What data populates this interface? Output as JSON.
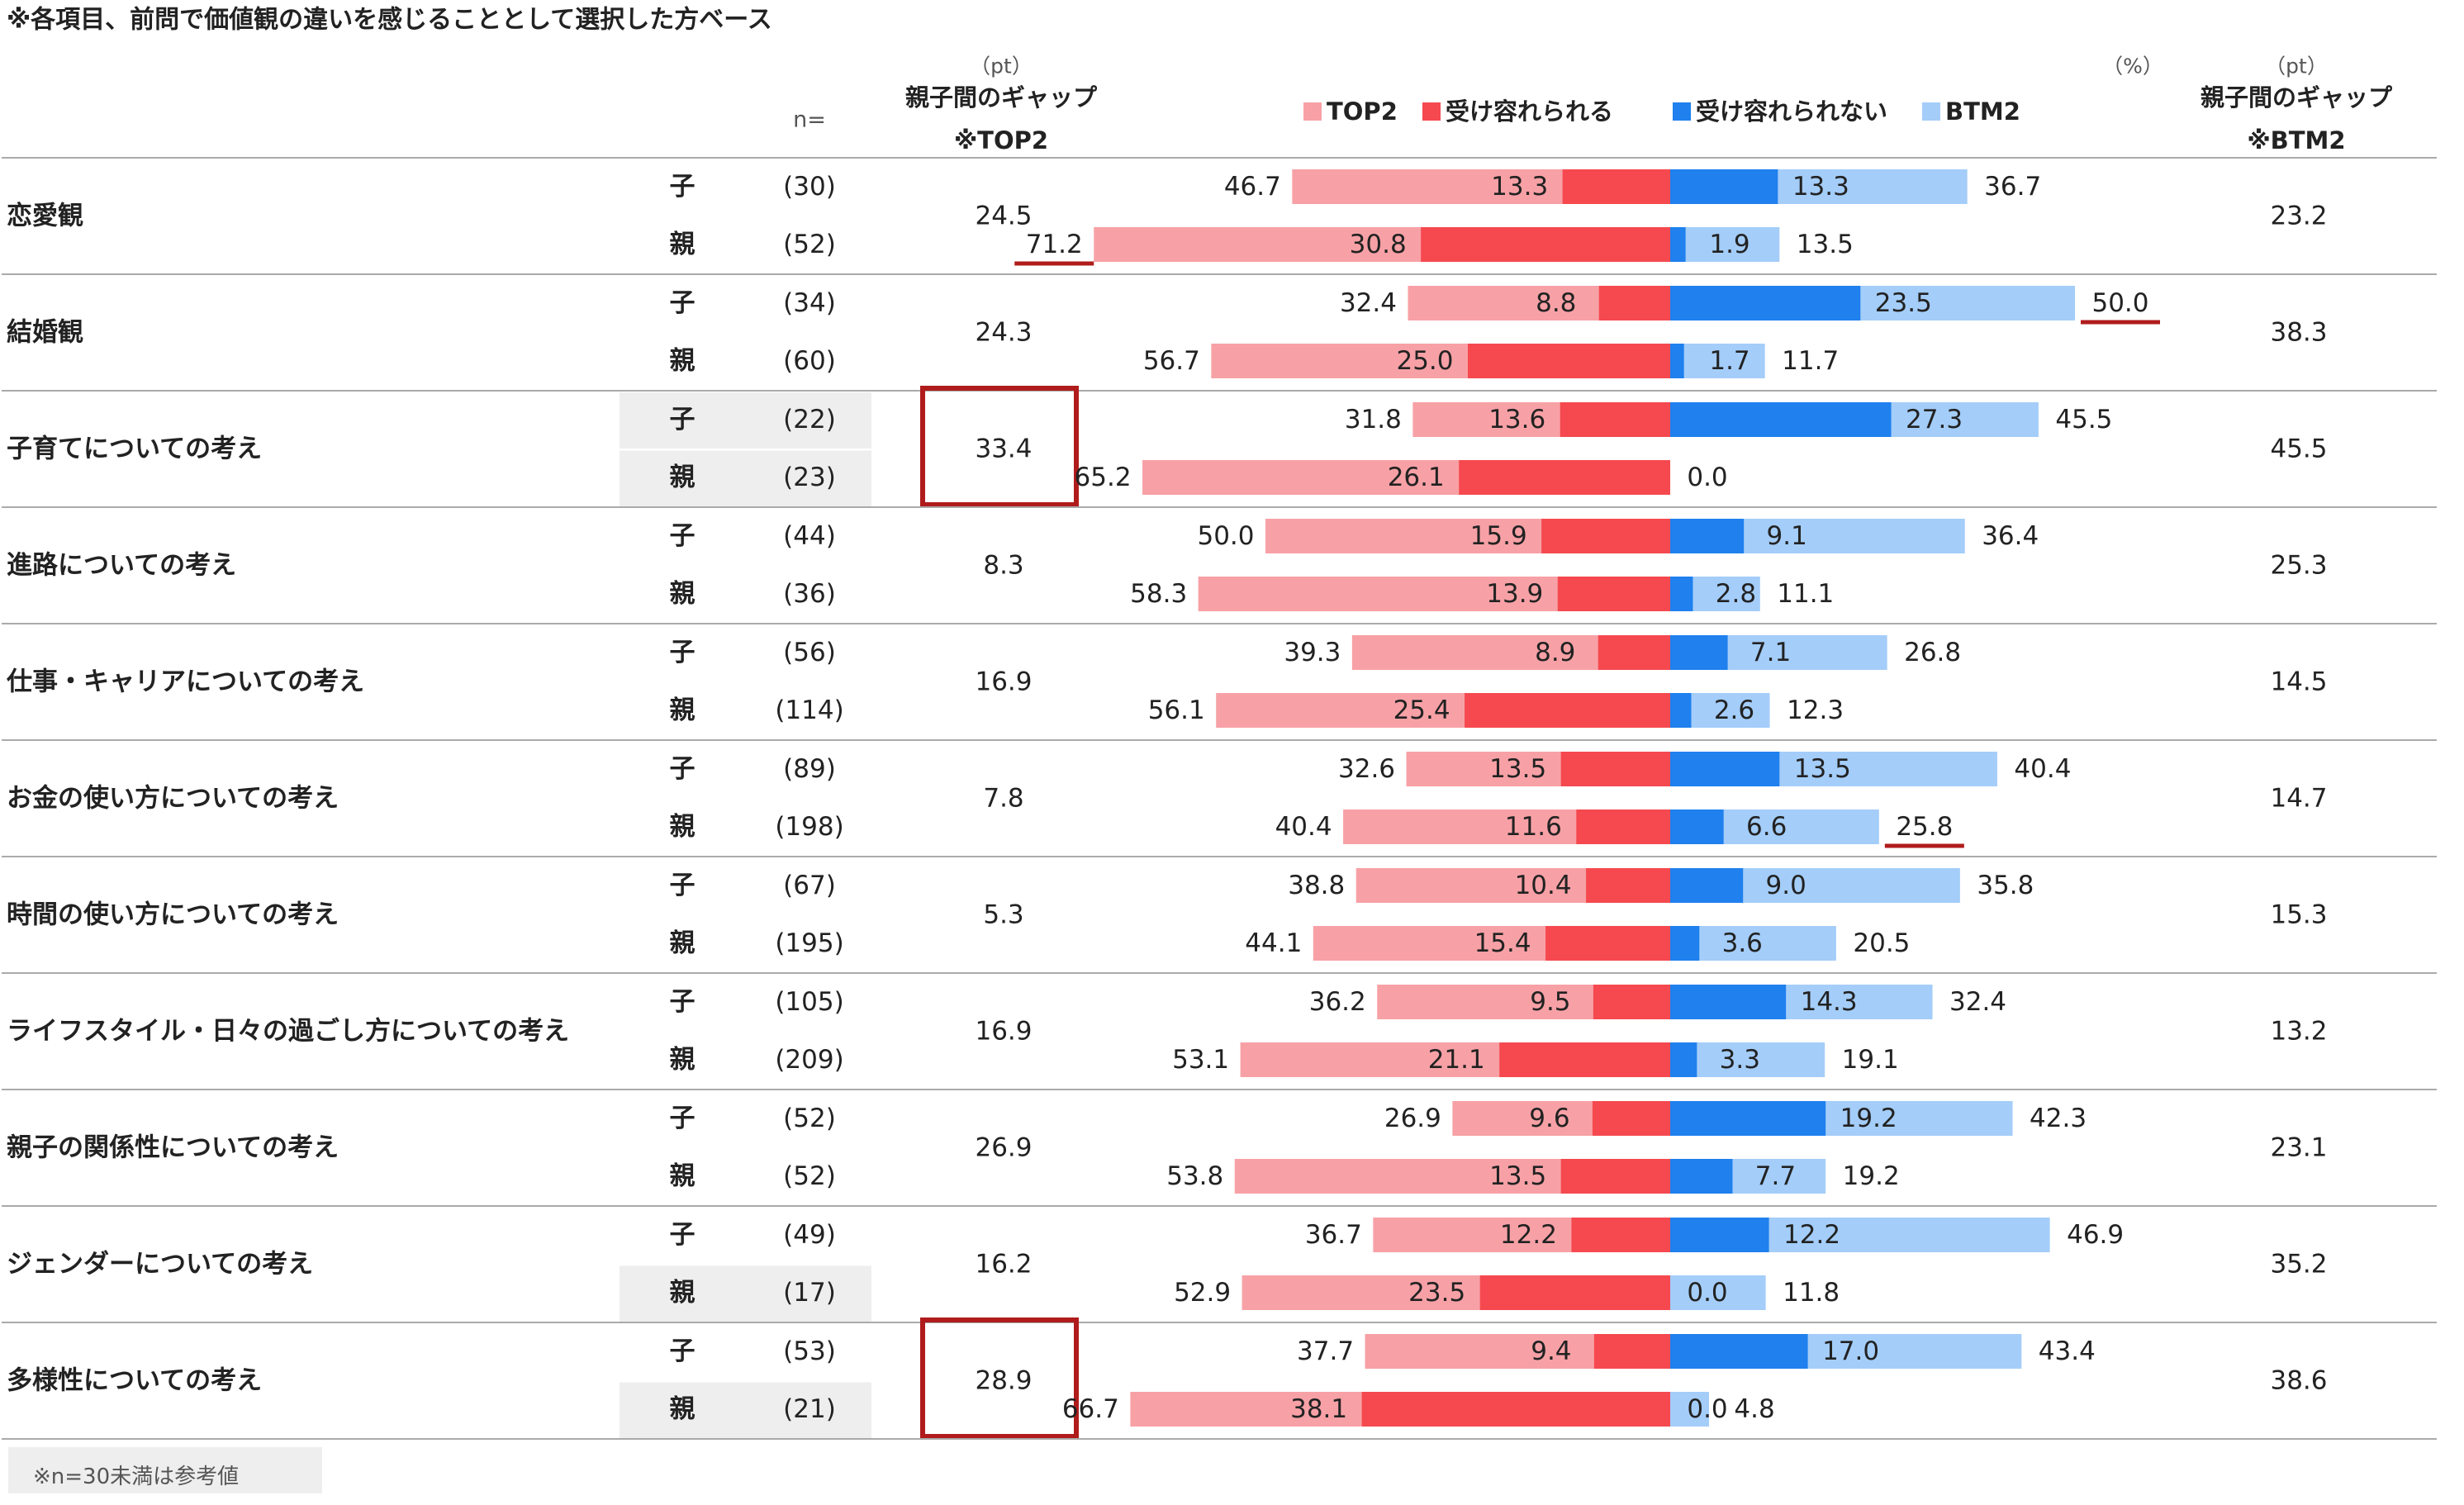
{
  "header": {
    "note": "※各項目、前問で価値観の違いを感じることとして選択した方ベース",
    "n_label": "n=",
    "pt_unit": "（pt）",
    "pct_unit": "（%）",
    "gap_top2_title": "親子間のギャップ",
    "gap_top2_sub": "※TOP2",
    "gap_btm2_title": "親子間のギャップ",
    "gap_btm2_sub": "※BTM2"
  },
  "legend": [
    {
      "label": "TOP2",
      "color": "#f7a1a6"
    },
    {
      "label": "受け容れられる",
      "color": "#f5494f"
    },
    {
      "label": "受け容れられない",
      "color": "#1f80ee"
    },
    {
      "label": "BTM2",
      "color": "#a4cdf9"
    }
  ],
  "footnote": "※n=30未満は参考値",
  "chart_data": {
    "type": "bar",
    "orientation": "horizontal-diverging",
    "unit": "%",
    "series": [
      {
        "name": "TOP2",
        "color": "#f7a1a6"
      },
      {
        "name": "受け容れられる",
        "color": "#f5494f"
      },
      {
        "name": "受け容れられない",
        "color": "#1f80ee"
      },
      {
        "name": "BTM2",
        "color": "#a4cdf9"
      }
    ],
    "categories": [
      {
        "label": "恋愛観",
        "gap_top2": "24.5",
        "gap_btm2": "23.2",
        "highlight_top2_gap": false,
        "rows": [
          {
            "group": "子",
            "n": "(30)",
            "top2": 46.7,
            "accept": 13.3,
            "reject": 13.3,
            "btm2": 36.7
          },
          {
            "group": "親",
            "n": "(52)",
            "top2": 71.2,
            "accept": 30.8,
            "reject": 1.9,
            "btm2": 13.5,
            "underline": "top2"
          }
        ]
      },
      {
        "label": "結婚観",
        "gap_top2": "24.3",
        "gap_btm2": "38.3",
        "highlight_top2_gap": false,
        "rows": [
          {
            "group": "子",
            "n": "(34)",
            "top2": 32.4,
            "accept": 8.8,
            "reject": 23.5,
            "btm2": 50.0,
            "underline": "btm2"
          },
          {
            "group": "親",
            "n": "(60)",
            "top2": 56.7,
            "accept": 25.0,
            "reject": 1.7,
            "btm2": 11.7
          }
        ]
      },
      {
        "label": "子育てについての考え",
        "gap_top2": "33.4",
        "gap_btm2": "45.5",
        "highlight_top2_gap": true,
        "rows": [
          {
            "group": "子",
            "n": "(22)",
            "top2": 31.8,
            "accept": 13.6,
            "reject": 27.3,
            "btm2": 45.5,
            "shaded": true
          },
          {
            "group": "親",
            "n": "(23)",
            "top2": 65.2,
            "accept": 26.1,
            "reject": 0,
            "btm2": 0.0,
            "shaded": true
          }
        ]
      },
      {
        "label": "進路についての考え",
        "gap_top2": "8.3",
        "gap_btm2": "25.3",
        "highlight_top2_gap": false,
        "rows": [
          {
            "group": "子",
            "n": "(44)",
            "top2": 50.0,
            "accept": 15.9,
            "reject": 9.1,
            "btm2": 36.4
          },
          {
            "group": "親",
            "n": "(36)",
            "top2": 58.3,
            "accept": 13.9,
            "reject": 2.8,
            "btm2": 11.1
          }
        ]
      },
      {
        "label": "仕事・キャリアについての考え",
        "gap_top2": "16.9",
        "gap_btm2": "14.5",
        "highlight_top2_gap": false,
        "rows": [
          {
            "group": "子",
            "n": "(56)",
            "top2": 39.3,
            "accept": 8.9,
            "reject": 7.1,
            "btm2": 26.8
          },
          {
            "group": "親",
            "n": "(114)",
            "top2": 56.1,
            "accept": 25.4,
            "reject": 2.6,
            "btm2": 12.3
          }
        ]
      },
      {
        "label": "お金の使い方についての考え",
        "gap_top2": "7.8",
        "gap_btm2": "14.7",
        "highlight_top2_gap": false,
        "rows": [
          {
            "group": "子",
            "n": "(89)",
            "top2": 32.6,
            "accept": 13.5,
            "reject": 13.5,
            "btm2": 40.4
          },
          {
            "group": "親",
            "n": "(198)",
            "top2": 40.4,
            "accept": 11.6,
            "reject": 6.6,
            "btm2": 25.8,
            "underline": "btm2"
          }
        ]
      },
      {
        "label": "時間の使い方についての考え",
        "gap_top2": "5.3",
        "gap_btm2": "15.3",
        "highlight_top2_gap": false,
        "rows": [
          {
            "group": "子",
            "n": "(67)",
            "top2": 38.8,
            "accept": 10.4,
            "reject": 9.0,
            "btm2": 35.8
          },
          {
            "group": "親",
            "n": "(195)",
            "top2": 44.1,
            "accept": 15.4,
            "reject": 3.6,
            "btm2": 20.5
          }
        ]
      },
      {
        "label": "ライフスタイル・日々の過ごし方についての考え",
        "gap_top2": "16.9",
        "gap_btm2": "13.2",
        "highlight_top2_gap": false,
        "rows": [
          {
            "group": "子",
            "n": "(105)",
            "top2": 36.2,
            "accept": 9.5,
            "reject": 14.3,
            "btm2": 32.4
          },
          {
            "group": "親",
            "n": "(209)",
            "top2": 53.1,
            "accept": 21.1,
            "reject": 3.3,
            "btm2": 19.1
          }
        ]
      },
      {
        "label": "親子の関係性についての考え",
        "gap_top2": "26.9",
        "gap_btm2": "23.1",
        "highlight_top2_gap": false,
        "rows": [
          {
            "group": "子",
            "n": "(52)",
            "top2": 26.9,
            "accept": 9.6,
            "reject": 19.2,
            "btm2": 42.3
          },
          {
            "group": "親",
            "n": "(52)",
            "top2": 53.8,
            "accept": 13.5,
            "reject": 7.7,
            "btm2": 19.2
          }
        ]
      },
      {
        "label": "ジェンダーについての考え",
        "gap_top2": "16.2",
        "gap_btm2": "35.2",
        "highlight_top2_gap": false,
        "rows": [
          {
            "group": "子",
            "n": "(49)",
            "top2": 36.7,
            "accept": 12.2,
            "reject": 12.2,
            "btm2": 46.9
          },
          {
            "group": "親",
            "n": "(17)",
            "top2": 52.9,
            "accept": 23.5,
            "reject": 0.0,
            "btm2": 11.8,
            "shaded": true
          }
        ]
      },
      {
        "label": "多様性についての考え",
        "gap_top2": "28.9",
        "gap_btm2": "38.6",
        "highlight_top2_gap": true,
        "rows": [
          {
            "group": "子",
            "n": "(53)",
            "top2": 37.7,
            "accept": 9.4,
            "reject": 17.0,
            "btm2": 43.4
          },
          {
            "group": "親",
            "n": "(21)",
            "top2": 66.7,
            "accept": 38.1,
            "reject": 0.0,
            "btm2": 4.8,
            "shaded": true
          }
        ]
      }
    ]
  }
}
